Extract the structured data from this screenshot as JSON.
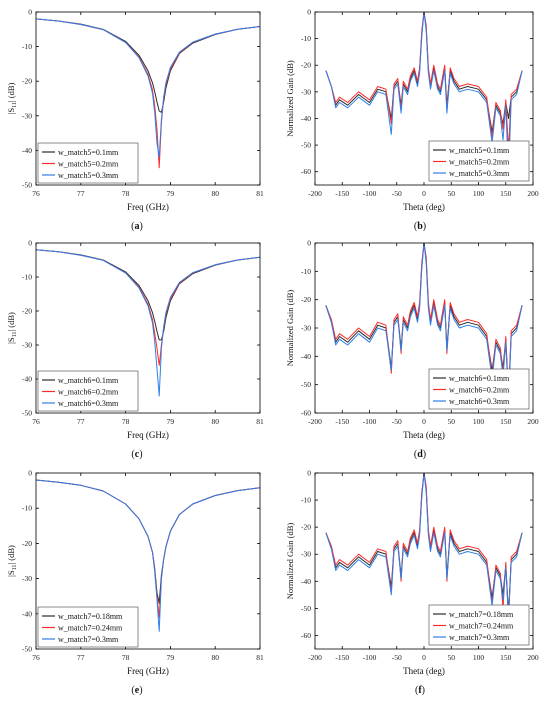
{
  "colors": {
    "series": [
      "#2b2b2b",
      "#ff2a2a",
      "#2f7fe8"
    ],
    "axis": "#000000"
  },
  "panels": [
    {
      "kind": "s11",
      "caption": "a",
      "xlabel": "Freq (GHz)",
      "ylabel": "|S",
      "legend": [
        "w_match5=0.1mm",
        "w_match5=0.2mm",
        "w_match5=0.3mm"
      ],
      "xticks": [
        "76",
        "77",
        "78",
        "79",
        "80",
        "81"
      ],
      "yticks": [
        "0",
        "-10",
        "-20",
        "-30",
        "-40",
        "-50"
      ]
    },
    {
      "kind": "gain",
      "caption": "b",
      "xlabel": "Theta (deg)",
      "ylabel": "Normalized Gain (dB)",
      "legend": [
        "w_match5=0.1mm",
        "w_match5=0.2mm",
        "w_match5=0.3mm"
      ],
      "xticks": [
        "-200",
        "-150",
        "-100",
        "-50",
        "0",
        "50",
        "100",
        "150",
        "200"
      ],
      "yticks": [
        "0",
        "-10",
        "-20",
        "-30",
        "-40",
        "-50",
        "-60"
      ]
    },
    {
      "kind": "s11",
      "caption": "c",
      "xlabel": "Freq (GHz)",
      "ylabel": "|S",
      "legend": [
        "w_match6=0.1mm",
        "w_match6=0.2mm",
        "w_match6=0.3mm"
      ],
      "xticks": [
        "76",
        "77",
        "78",
        "79",
        "80",
        "81"
      ],
      "yticks": [
        "0",
        "-10",
        "-20",
        "-30",
        "-40",
        "-50"
      ]
    },
    {
      "kind": "gain",
      "caption": "d",
      "xlabel": "Theta (deg)",
      "ylabel": "Normalized Gain (dB)",
      "legend": [
        "w_match6=0.1mm",
        "w_match6=0.2mm",
        "w_match6=0.3mm"
      ],
      "xticks": [
        "-200",
        "-150",
        "-100",
        "-50",
        "0",
        "50",
        "100",
        "150",
        "200"
      ],
      "yticks": [
        "0",
        "-10",
        "-20",
        "-30",
        "-40",
        "-50",
        "-60"
      ]
    },
    {
      "kind": "s11",
      "caption": "e",
      "xlabel": "Freq (GHz)",
      "ylabel": "|S",
      "legend": [
        "w_match7=0.18mm",
        "w_match7=0.24mm",
        "w_match7=0.3mm"
      ],
      "xticks": [
        "76",
        "77",
        "78",
        "79",
        "80",
        "81"
      ],
      "yticks": [
        "0",
        "-10",
        "-20",
        "-30",
        "-40",
        "-50"
      ]
    },
    {
      "kind": "gain",
      "caption": "f",
      "xlabel": "Theta (deg)",
      "ylabel": "Normalized Gain (dB)",
      "legend": [
        "w_match7=0.18mm",
        "w_match7=0.24mm",
        "w_match7=0.3mm"
      ],
      "xticks": [
        "-200",
        "-150",
        "-100",
        "-50",
        "0",
        "50",
        "100",
        "150",
        "200"
      ],
      "yticks": [
        "0",
        "-10",
        "-20",
        "-30",
        "-40",
        "-50",
        "-60"
      ]
    }
  ],
  "chart_data": [
    {
      "type": "line",
      "panel": "a",
      "xlabel": "Freq (GHz)",
      "ylabel": "|S11| (dB)",
      "xlim": [
        76,
        81
      ],
      "ylim": [
        -50,
        0
      ],
      "legend_position": "bottom-left",
      "grid": false,
      "x": [
        76,
        76.5,
        77,
        77.5,
        78,
        78.3,
        78.5,
        78.6,
        78.65,
        78.7,
        78.75,
        78.8,
        78.85,
        78.9,
        79,
        79.2,
        79.5,
        80,
        80.5,
        81
      ],
      "series": [
        {
          "name": "w_match5=0.1mm",
          "values": [
            -2,
            -2.6,
            -3.5,
            -5,
            -8.5,
            -12.5,
            -17,
            -20.5,
            -23,
            -26,
            -28.6,
            -29,
            -26,
            -22,
            -17,
            -12,
            -9,
            -6.5,
            -5,
            -4.2
          ]
        },
        {
          "name": "w_match5=0.2mm",
          "values": [
            -2,
            -2.6,
            -3.6,
            -5.1,
            -8.8,
            -13,
            -18,
            -22.5,
            -27,
            -34,
            -45,
            -32,
            -25,
            -21,
            -16.5,
            -11.8,
            -8.8,
            -6.4,
            -5,
            -4.2
          ]
        },
        {
          "name": "w_match5=0.3mm",
          "values": [
            -2,
            -2.6,
            -3.6,
            -5.1,
            -8.8,
            -13.2,
            -18.5,
            -23.5,
            -29,
            -38,
            -42,
            -31,
            -24.5,
            -20.5,
            -16,
            -11.6,
            -8.7,
            -6.4,
            -5,
            -4.2
          ]
        }
      ]
    },
    {
      "type": "line",
      "panel": "b",
      "xlabel": "Theta (deg)",
      "ylabel": "Normalized Gain (dB)",
      "xlim": [
        -200,
        200
      ],
      "ylim": [
        -65,
        0
      ],
      "legend_position": "bottom-right",
      "grid": false,
      "x": [
        -180,
        -170,
        -162,
        -155,
        -140,
        -120,
        -100,
        -85,
        -70,
        -60,
        -55,
        -48,
        -42,
        -38,
        -30,
        -25,
        -18,
        -12,
        -8,
        -4,
        0,
        4,
        8,
        12,
        18,
        25,
        30,
        38,
        42,
        48,
        55,
        65,
        80,
        100,
        115,
        125,
        132,
        140,
        145,
        150,
        155,
        160,
        170,
        180
      ],
      "series": [
        {
          "name": "w_match5=0.1mm",
          "values": [
            -22,
            -28,
            -35,
            -33,
            -35,
            -31,
            -34,
            -29,
            -30,
            -40,
            -28,
            -26,
            -35,
            -27,
            -30,
            -25,
            -22,
            -27,
            -22,
            -8,
            0,
            -6,
            -22,
            -28,
            -21,
            -28,
            -30,
            -21,
            -35,
            -22,
            -26,
            -29,
            -28,
            -29,
            -33,
            -45,
            -35,
            -38,
            -42,
            -34,
            -40,
            -32,
            -30,
            -22
          ]
        },
        {
          "name": "w_match5=0.2mm",
          "values": [
            -22,
            -28,
            -34,
            -32,
            -34,
            -30,
            -33,
            -28,
            -29,
            -42,
            -27,
            -25,
            -37,
            -26,
            -29,
            -24,
            -21,
            -26,
            -21,
            -7,
            0,
            -5,
            -21,
            -27,
            -20,
            -27,
            -29,
            -20,
            -37,
            -21,
            -25,
            -28,
            -27,
            -28,
            -32,
            -47,
            -34,
            -37,
            -44,
            -33,
            -52,
            -31,
            -29,
            -22
          ]
        },
        {
          "name": "w_match5=0.3mm",
          "values": [
            -22,
            -28,
            -36,
            -34,
            -36,
            -32,
            -35,
            -30,
            -31,
            -46,
            -29,
            -27,
            -38,
            -28,
            -31,
            -26,
            -23,
            -28,
            -23,
            -9,
            0,
            -7,
            -23,
            -29,
            -22,
            -29,
            -31,
            -22,
            -38,
            -23,
            -27,
            -30,
            -29,
            -30,
            -34,
            -49,
            -36,
            -39,
            -48,
            -35,
            -62,
            -33,
            -31,
            -22
          ]
        }
      ]
    },
    {
      "type": "line",
      "panel": "c",
      "xlabel": "Freq (GHz)",
      "ylabel": "|S11| (dB)",
      "xlim": [
        76,
        81
      ],
      "ylim": [
        -50,
        0
      ],
      "legend_position": "bottom-left",
      "grid": false,
      "x": [
        76,
        76.5,
        77,
        77.5,
        78,
        78.3,
        78.5,
        78.6,
        78.65,
        78.7,
        78.75,
        78.8,
        78.85,
        78.9,
        79,
        79.2,
        79.5,
        80,
        80.5,
        81
      ],
      "series": [
        {
          "name": "w_match6=0.1mm",
          "values": [
            -2,
            -2.6,
            -3.5,
            -5,
            -8.5,
            -12.5,
            -17,
            -20.5,
            -23,
            -26,
            -28.5,
            -28.5,
            -26,
            -22,
            -17,
            -12,
            -9,
            -6.5,
            -5,
            -4.2
          ]
        },
        {
          "name": "w_match6=0.2mm",
          "values": [
            -2,
            -2.6,
            -3.6,
            -5.1,
            -8.8,
            -13,
            -18,
            -22.5,
            -26.5,
            -31,
            -36,
            -30,
            -25,
            -21,
            -16.5,
            -11.8,
            -8.8,
            -6.4,
            -5,
            -4.2
          ]
        },
        {
          "name": "w_match6=0.3mm",
          "values": [
            -2,
            -2.6,
            -3.6,
            -5.1,
            -8.8,
            -13.2,
            -18.5,
            -23.5,
            -29,
            -37,
            -45,
            -31,
            -24.5,
            -20.5,
            -16,
            -11.6,
            -8.7,
            -6.4,
            -5,
            -4.2
          ]
        }
      ]
    },
    {
      "type": "line",
      "panel": "d",
      "xlabel": "Theta (deg)",
      "ylabel": "Normalized Gain (dB)",
      "xlim": [
        -200,
        200
      ],
      "ylim": [
        -60,
        0
      ],
      "legend_position": "bottom-right",
      "grid": false,
      "x": [
        -180,
        -170,
        -162,
        -155,
        -140,
        -120,
        -100,
        -85,
        -70,
        -60,
        -55,
        -48,
        -42,
        -38,
        -30,
        -25,
        -18,
        -12,
        -8,
        -4,
        0,
        4,
        8,
        12,
        18,
        25,
        30,
        38,
        42,
        48,
        55,
        65,
        80,
        100,
        115,
        125,
        132,
        140,
        145,
        150,
        155,
        160,
        170,
        180
      ],
      "series": [
        {
          "name": "w_match6=0.1mm",
          "values": [
            -22,
            -28,
            -35,
            -33,
            -35,
            -31,
            -34,
            -29,
            -30,
            -44,
            -28,
            -26,
            -37,
            -27,
            -30,
            -25,
            -22,
            -27,
            -22,
            -8,
            0,
            -6,
            -22,
            -28,
            -21,
            -28,
            -30,
            -21,
            -37,
            -22,
            -26,
            -29,
            -28,
            -29,
            -33,
            -45,
            -35,
            -38,
            -44,
            -34,
            -55,
            -32,
            -30,
            -22
          ]
        },
        {
          "name": "w_match6=0.2mm",
          "values": [
            -22,
            -27,
            -34,
            -32,
            -34,
            -30,
            -33,
            -28,
            -29,
            -46,
            -27,
            -25,
            -39,
            -26,
            -29,
            -24,
            -21,
            -26,
            -21,
            -7,
            0,
            -5,
            -21,
            -27,
            -20,
            -27,
            -29,
            -20,
            -39,
            -21,
            -25,
            -28,
            -27,
            -28,
            -32,
            -47,
            -34,
            -37,
            -46,
            -33,
            -54,
            -31,
            -29,
            -22
          ]
        },
        {
          "name": "w_match6=0.3mm",
          "values": [
            -22,
            -28,
            -36,
            -34,
            -36,
            -32,
            -35,
            -30,
            -31,
            -45,
            -29,
            -27,
            -38,
            -28,
            -31,
            -26,
            -23,
            -28,
            -23,
            -9,
            0,
            -7,
            -23,
            -29,
            -22,
            -29,
            -31,
            -22,
            -38,
            -23,
            -27,
            -30,
            -29,
            -30,
            -34,
            -48,
            -36,
            -39,
            -47,
            -35,
            -56,
            -33,
            -31,
            -22
          ]
        }
      ]
    },
    {
      "type": "line",
      "panel": "e",
      "xlabel": "Freq (GHz)",
      "ylabel": "|S11| (dB)",
      "xlim": [
        76,
        81
      ],
      "ylim": [
        -50,
        0
      ],
      "legend_position": "bottom-left",
      "grid": false,
      "x": [
        76,
        76.5,
        77,
        77.5,
        78,
        78.3,
        78.5,
        78.6,
        78.65,
        78.7,
        78.75,
        78.8,
        78.85,
        78.9,
        79,
        79.2,
        79.5,
        80,
        80.5,
        81
      ],
      "series": [
        {
          "name": "w_match7=0.18mm",
          "values": [
            -2,
            -2.6,
            -3.5,
            -5.1,
            -8.8,
            -13,
            -18,
            -22.5,
            -27,
            -34,
            -37,
            -29,
            -24.5,
            -21,
            -16.5,
            -11.8,
            -8.8,
            -6.4,
            -5,
            -4.2
          ]
        },
        {
          "name": "w_match7=0.24mm",
          "values": [
            -2,
            -2.6,
            -3.5,
            -5.1,
            -8.8,
            -13,
            -18,
            -22.5,
            -27.5,
            -35,
            -41,
            -30,
            -24.5,
            -21,
            -16.5,
            -11.8,
            -8.8,
            -6.4,
            -5,
            -4.2
          ]
        },
        {
          "name": "w_match7=0.3mm",
          "values": [
            -2,
            -2.6,
            -3.5,
            -5.1,
            -8.8,
            -13,
            -18,
            -22.5,
            -28,
            -36,
            -45,
            -30,
            -24.5,
            -21,
            -16.5,
            -11.8,
            -8.8,
            -6.4,
            -5,
            -4.2
          ]
        }
      ]
    },
    {
      "type": "line",
      "panel": "f",
      "xlabel": "Theta (deg)",
      "ylabel": "Normalized Gain (dB)",
      "xlim": [
        -200,
        200
      ],
      "ylim": [
        -65,
        0
      ],
      "legend_position": "bottom-right",
      "grid": false,
      "x": [
        -180,
        -170,
        -162,
        -155,
        -140,
        -120,
        -100,
        -85,
        -70,
        -60,
        -55,
        -48,
        -42,
        -38,
        -30,
        -25,
        -18,
        -12,
        -8,
        -4,
        0,
        4,
        8,
        12,
        18,
        25,
        30,
        38,
        42,
        48,
        55,
        65,
        80,
        100,
        115,
        125,
        132,
        140,
        145,
        150,
        155,
        160,
        170,
        180
      ],
      "series": [
        {
          "name": "w_match7=0.18mm",
          "values": [
            -22,
            -28,
            -35,
            -33,
            -35,
            -31,
            -34,
            -29,
            -30,
            -42,
            -28,
            -26,
            -38,
            -27,
            -30,
            -25,
            -22,
            -27,
            -22,
            -8,
            0,
            -6,
            -22,
            -28,
            -21,
            -28,
            -30,
            -21,
            -38,
            -22,
            -26,
            -29,
            -28,
            -29,
            -33,
            -46,
            -35,
            -38,
            -45,
            -34,
            -52,
            -32,
            -30,
            -22
          ]
        },
        {
          "name": "w_match7=0.24mm",
          "values": [
            -22,
            -27,
            -34,
            -32,
            -34,
            -30,
            -33,
            -28,
            -29,
            -44,
            -27,
            -25,
            -40,
            -26,
            -29,
            -24,
            -21,
            -26,
            -21,
            -7,
            0,
            -5,
            -21,
            -27,
            -20,
            -27,
            -29,
            -20,
            -40,
            -21,
            -25,
            -28,
            -27,
            -28,
            -32,
            -48,
            -34,
            -37,
            -50,
            -33,
            -55,
            -31,
            -29,
            -22
          ]
        },
        {
          "name": "w_match7=0.3mm",
          "values": [
            -22,
            -28,
            -36,
            -34,
            -36,
            -32,
            -35,
            -30,
            -31,
            -45,
            -29,
            -27,
            -39,
            -28,
            -31,
            -26,
            -23,
            -28,
            -23,
            -9,
            0,
            -7,
            -23,
            -29,
            -22,
            -29,
            -31,
            -22,
            -39,
            -23,
            -27,
            -30,
            -29,
            -30,
            -34,
            -49,
            -36,
            -39,
            -47,
            -35,
            -53,
            -33,
            -31,
            -22
          ]
        }
      ]
    }
  ]
}
